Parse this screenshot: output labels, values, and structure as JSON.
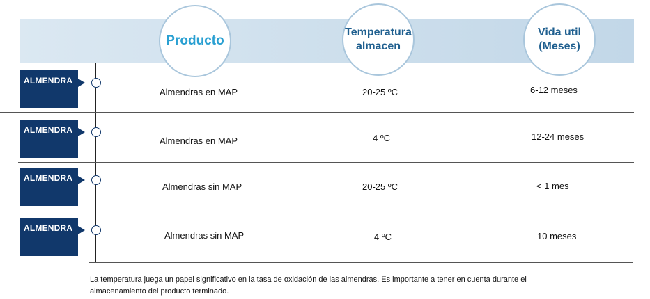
{
  "header": {
    "producto": "Producto",
    "temperatura_line1": "Temperatura",
    "temperatura_line2": "almacen",
    "vida_line1": "Vida util",
    "vida_line2": "(Meses)"
  },
  "rows": [
    {
      "tag": "ALMENDRA",
      "producto": "Almendras en MAP",
      "temperatura": "20-25 ºC",
      "vida": "6-12 meses"
    },
    {
      "tag": "ALMENDRA",
      "producto": "Almendras en MAP",
      "temperatura": "4 ºC",
      "vida": "12-24 meses"
    },
    {
      "tag": "ALMENDRA",
      "producto": "Almendras sin MAP",
      "temperatura": "20-25 ºC",
      "vida": "< 1 mes"
    },
    {
      "tag": "ALMENDRA",
      "producto": "Almendras sin MAP",
      "temperatura": "4 ºC",
      "vida": "10 meses"
    }
  ],
  "footer": {
    "line1": "La temperatura juega un papel significativo en la tasa de oxidación de las almendras. Es importante a tener en cuenta durante el",
    "line2": "almacenamiento del producto terminado."
  },
  "colors": {
    "tag_bg": "#11386b",
    "header_band": "#c2d7e8",
    "producto_title": "#2aa0d2",
    "header_title": "#1f5f8f"
  }
}
